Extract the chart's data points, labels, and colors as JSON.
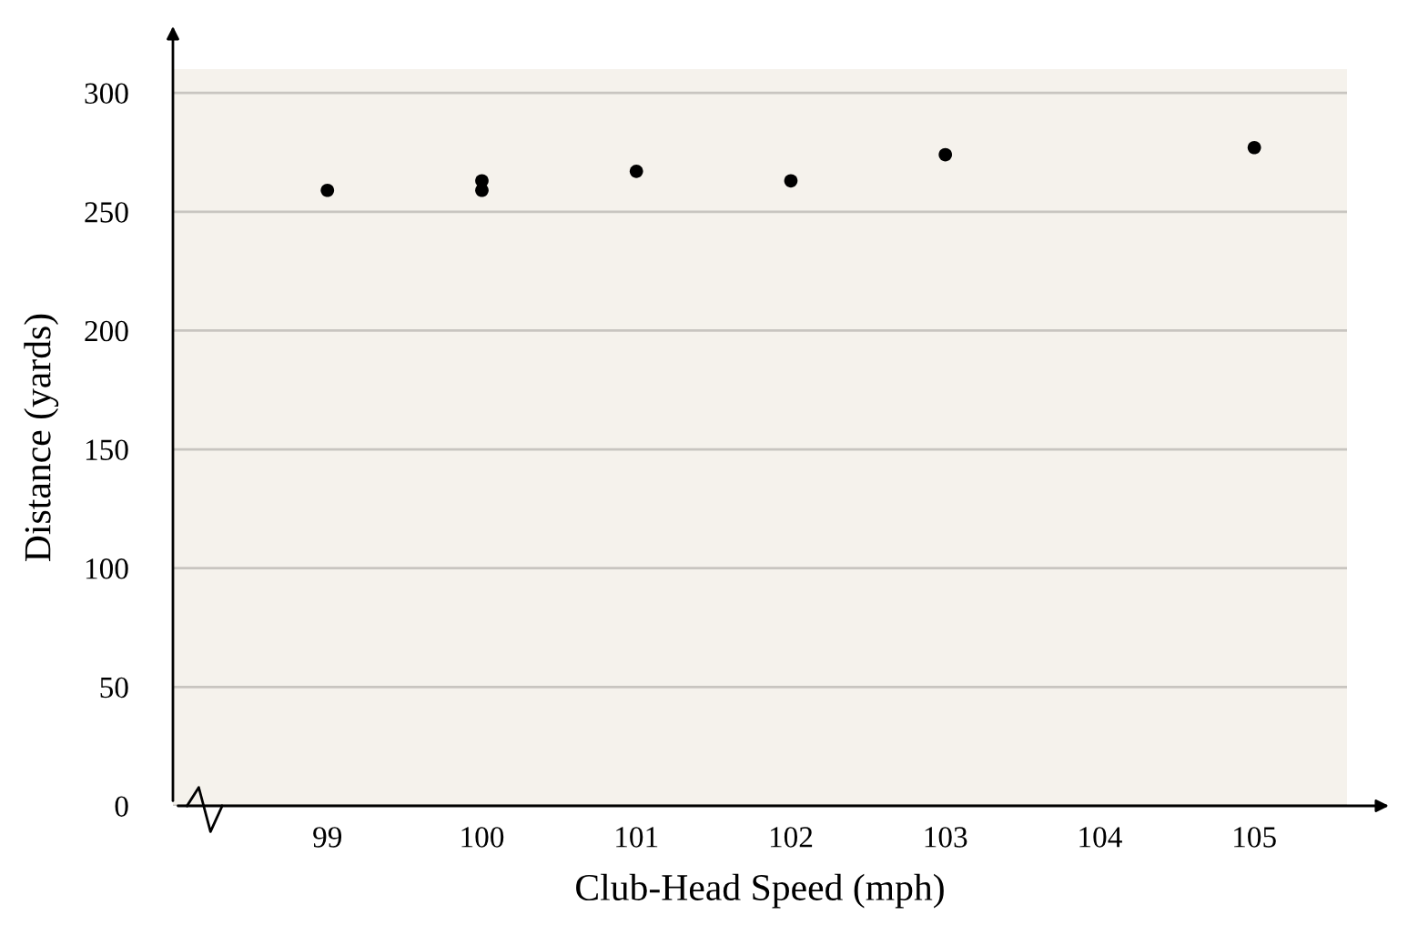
{
  "chart_data": {
    "type": "scatter",
    "xlabel": "Club-Head Speed (mph)",
    "ylabel": "Distance (yards)",
    "x": [
      99,
      100,
      100,
      101,
      102,
      103,
      105
    ],
    "values": [
      259,
      263,
      259,
      267,
      263,
      274,
      277
    ],
    "color": "#000000",
    "marker": "circle",
    "xlim": [
      98,
      105.6
    ],
    "xticks": [
      99,
      100,
      101,
      102,
      103,
      104,
      105
    ],
    "ylim": [
      0,
      310
    ],
    "yticks": [
      {
        "value": 0,
        "label": "0"
      },
      50,
      100,
      150,
      200,
      250,
      300
    ],
    "grid": "y"
  }
}
